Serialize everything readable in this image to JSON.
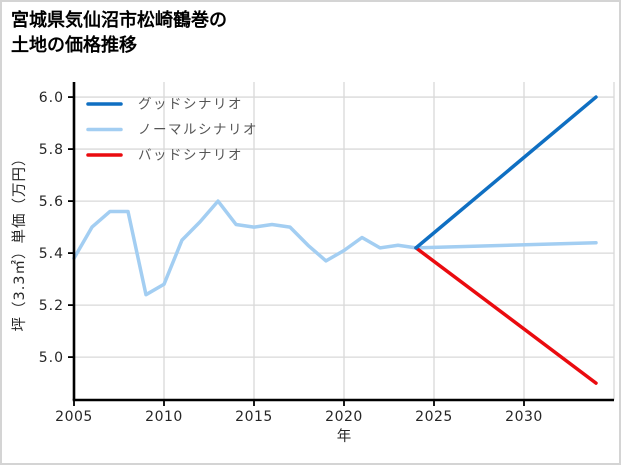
{
  "title": {
    "line1": "宮城県気仙沼市松崎鶴巻の",
    "line2": "土地の価格推移"
  },
  "chart_data": {
    "type": "line",
    "title": "宮城県気仙沼市松崎鶴巻の土地の価格推移",
    "xlabel": "年",
    "ylabel": "坪（3.3㎡）単価（万円）",
    "xlim": [
      2005,
      2035
    ],
    "ylim": [
      4.835,
      6.058
    ],
    "xticks": [
      2005,
      2010,
      2015,
      2020,
      2025,
      2030
    ],
    "yticks": [
      5.0,
      5.2,
      5.4,
      5.6,
      5.8,
      6.0
    ],
    "grid": {
      "show": true,
      "color": "#d9d9d9",
      "x_extra": [
        2035
      ]
    },
    "axis": {
      "spine_color": "#000000",
      "tick_color": "#262626",
      "label_color": "#262626"
    },
    "legend": {
      "position": "top-left",
      "text_color": "#555555",
      "entries": [
        {
          "series": "good",
          "label": "グッドシナリオ",
          "color": "#0f6fc2"
        },
        {
          "series": "normal",
          "label": "ノーマルシナリオ",
          "color": "#a3cef2"
        },
        {
          "series": "bad",
          "label": "バッドシナリオ",
          "color": "#ea0b0f"
        }
      ]
    },
    "series": [
      {
        "id": "normal",
        "name": "ノーマルシナリオ",
        "color": "#a3cef2",
        "width": 3.5,
        "x": [
          2005,
          2006,
          2007,
          2008,
          2009,
          2010,
          2011,
          2012,
          2013,
          2014,
          2015,
          2016,
          2017,
          2018,
          2019,
          2020,
          2021,
          2022,
          2023,
          2024,
          2034
        ],
        "y": [
          5.38,
          5.5,
          5.56,
          5.56,
          5.24,
          5.28,
          5.45,
          5.52,
          5.6,
          5.51,
          5.5,
          5.51,
          5.5,
          5.43,
          5.37,
          5.41,
          5.46,
          5.42,
          5.43,
          5.42,
          5.44
        ]
      },
      {
        "id": "bad",
        "name": "バッドシナリオ",
        "color": "#ea0b0f",
        "width": 3.5,
        "x": [
          2024,
          2034
        ],
        "y": [
          5.42,
          4.9
        ]
      },
      {
        "id": "good",
        "name": "グッドシナリオ",
        "color": "#0f6fc2",
        "width": 3.5,
        "x": [
          2024,
          2034
        ],
        "y": [
          5.42,
          6.0
        ]
      }
    ]
  }
}
